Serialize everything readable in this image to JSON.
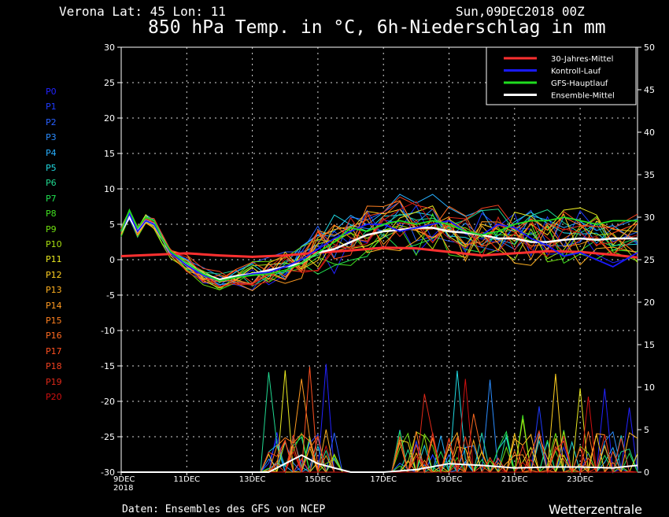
{
  "header": {
    "location": "Verona   Lat: 45 Lon: 11",
    "date": "Sun,09DEC2018 00Z",
    "title": "850 hPa Temp. in °C, 6h-Niederschlag in mm"
  },
  "footer": {
    "source": "Daten: Ensembles des GFS von NCEP",
    "brand": "Wetterzentrale"
  },
  "members": [
    {
      "label": "P0",
      "color": "#2222ff"
    },
    {
      "label": "P1",
      "color": "#1f3bff"
    },
    {
      "label": "P2",
      "color": "#2860ff"
    },
    {
      "label": "P3",
      "color": "#2a8cff"
    },
    {
      "label": "P4",
      "color": "#28b0ff"
    },
    {
      "label": "P5",
      "color": "#20d8e0"
    },
    {
      "label": "P6",
      "color": "#20d890"
    },
    {
      "label": "P7",
      "color": "#20e050"
    },
    {
      "label": "P8",
      "color": "#40e020"
    },
    {
      "label": "P9",
      "color": "#70e010"
    },
    {
      "label": "P10",
      "color": "#a8e010"
    },
    {
      "label": "P11",
      "color": "#e8e820"
    },
    {
      "label": "P12",
      "color": "#ffd020"
    },
    {
      "label": "P13",
      "color": "#ffb020"
    },
    {
      "label": "P14",
      "color": "#ff9a20"
    },
    {
      "label": "P15",
      "color": "#ff8020"
    },
    {
      "label": "P16",
      "color": "#ff6a20"
    },
    {
      "label": "P17",
      "color": "#ff5020"
    },
    {
      "label": "P18",
      "color": "#f04020"
    },
    {
      "label": "P19",
      "color": "#e02818"
    },
    {
      "label": "P20",
      "color": "#d01010"
    }
  ],
  "chart_data": {
    "type": "line",
    "title": "850 hPa Temp. in °C, 6h-Niederschlag in mm",
    "x_ticks": [
      {
        "label": "9DEC",
        "sub": "2018",
        "day": 0
      },
      {
        "label": "11DEC",
        "day": 2
      },
      {
        "label": "13DEC",
        "day": 4
      },
      {
        "label": "15DEC",
        "day": 6
      },
      {
        "label": "17DEC",
        "day": 8
      },
      {
        "label": "19DEC",
        "day": 10
      },
      {
        "label": "21DEC",
        "day": 12
      },
      {
        "label": "23DEC",
        "day": 14
      }
    ],
    "xlim": [
      0,
      15.75
    ],
    "ylim_left": [
      -30,
      30
    ],
    "yticks_left": [
      30,
      25,
      20,
      15,
      10,
      5,
      0,
      -5,
      -10,
      -15,
      -20,
      -25,
      -30
    ],
    "ylim_right": [
      0,
      50
    ],
    "yticks_right": [
      50,
      45,
      40,
      35,
      30,
      25,
      20,
      15,
      10,
      5,
      0
    ],
    "grid": true,
    "legend_position": "top-right",
    "legend": [
      {
        "name": "30-Jahres-Mittel",
        "color": "#ff3030"
      },
      {
        "name": "Kontroll-Lauf",
        "color": "#1a1aff"
      },
      {
        "name": "GFS-Hauptlauf",
        "color": "#20dd20"
      },
      {
        "name": "Ensemble-Mittel",
        "color": "#ffffff"
      }
    ],
    "series": [
      {
        "name": "30-Jahres-Mittel",
        "axis": "left",
        "color": "#ff3030",
        "x": [
          0,
          1,
          2,
          3,
          4,
          5,
          6,
          7,
          8,
          9,
          10,
          11,
          12,
          13,
          14,
          15,
          15.75
        ],
        "y": [
          0.5,
          0.7,
          0.9,
          0.6,
          0.4,
          0.6,
          1.0,
          1.3,
          1.7,
          1.6,
          1.1,
          0.6,
          0.9,
          1.2,
          1.1,
          0.7,
          0.3
        ]
      },
      {
        "name": "Ensemble-Mittel",
        "axis": "left",
        "color": "#ffffff",
        "x": [
          0,
          0.25,
          0.5,
          0.75,
          1,
          1.25,
          1.5,
          2,
          2.5,
          3,
          3.5,
          4,
          4.5,
          5,
          5.5,
          6,
          6.5,
          7,
          7.5,
          8,
          8.5,
          9,
          9.5,
          10,
          10.5,
          11,
          11.5,
          12,
          12.5,
          13,
          13.5,
          14,
          14.5,
          15,
          15.75
        ],
        "y": [
          4,
          6,
          4,
          5.5,
          5,
          3,
          1,
          -0.5,
          -2,
          -2.8,
          -2.3,
          -2,
          -1.5,
          -1,
          -0.5,
          1,
          1.5,
          2.5,
          3.5,
          4,
          4.2,
          4.5,
          4.5,
          4,
          3.8,
          3.5,
          3,
          3,
          2.5,
          2.5,
          2.8,
          3,
          2.8,
          3,
          3
        ]
      },
      {
        "name": "Kontroll-Lauf",
        "axis": "left",
        "color": "#1a1aff",
        "x": [
          0,
          0.25,
          0.5,
          0.75,
          1,
          1.25,
          1.5,
          2,
          2.5,
          3,
          3.5,
          4,
          4.5,
          5,
          5.5,
          6,
          6.5,
          7,
          7.5,
          8,
          8.5,
          9,
          9.5,
          10,
          10.5,
          11,
          11.5,
          12,
          12.5,
          13,
          13.5,
          14,
          14.5,
          15,
          15.75
        ],
        "y": [
          4,
          6.5,
          4,
          5.5,
          5,
          3,
          1,
          -0.8,
          -2.2,
          -3,
          -2.5,
          -2,
          -1.8,
          -1,
          0,
          1.5,
          3,
          4,
          5,
          5,
          4,
          4.5,
          5,
          5.5,
          4,
          3.5,
          5,
          4.5,
          3,
          2,
          0.5,
          1,
          0,
          -1,
          1
        ]
      },
      {
        "name": "GFS-Hauptlauf",
        "axis": "left",
        "color": "#20dd20",
        "x": [
          0,
          0.25,
          0.5,
          0.75,
          1,
          1.25,
          1.5,
          2,
          2.5,
          3,
          3.5,
          4,
          4.5,
          5,
          5.5,
          6,
          6.5,
          7,
          7.5,
          8,
          8.5,
          9,
          9.5,
          10,
          10.5,
          11,
          11.5,
          12,
          12.5,
          13,
          13.5,
          14,
          14.5,
          15,
          15.75
        ],
        "y": [
          4,
          7,
          4.5,
          6,
          5.5,
          3,
          1.2,
          -0.5,
          -2,
          -3,
          -2.5,
          -2.2,
          -2,
          -1.5,
          -0.5,
          1,
          2.5,
          4.5,
          4,
          5,
          5.5,
          5,
          5.5,
          5,
          4,
          3.5,
          4,
          5,
          5.5,
          5.5,
          6,
          5.5,
          5,
          5.5,
          5.5
        ]
      },
      {
        "name": "Ensemble-Mittel Niederschlag",
        "axis": "right",
        "color": "#ffffff",
        "x": [
          0,
          2,
          4,
          4.5,
          5,
          5.5,
          6,
          6.5,
          7,
          8,
          9,
          10,
          11,
          12,
          13,
          14,
          15,
          15.75
        ],
        "y": [
          0,
          0,
          0,
          0,
          1,
          2,
          1,
          0.5,
          0,
          0,
          0.3,
          1,
          0.8,
          0.5,
          0.6,
          0.6,
          0.5,
          0.8
        ]
      }
    ]
  }
}
